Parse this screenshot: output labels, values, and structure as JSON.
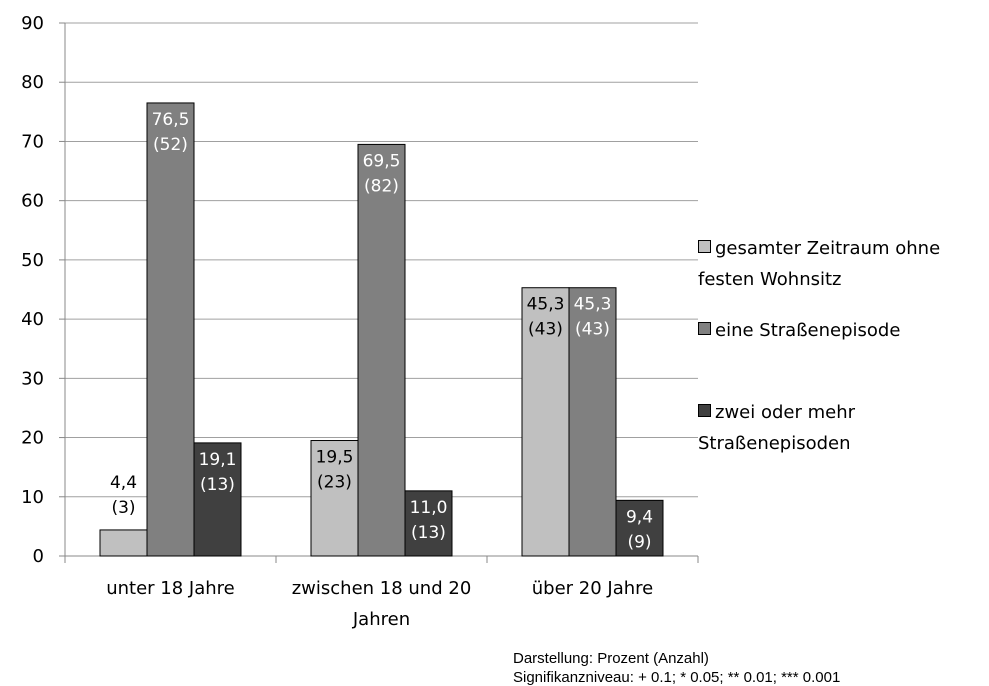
{
  "chart_data": {
    "type": "bar",
    "categories": [
      "unter 18 Jahre",
      "zwischen 18 und 20 Jahren",
      "über 20 Jahre"
    ],
    "series": [
      {
        "name": "gesamter Zeitraum ohne festen Wohnsitz",
        "color": "#c0c0c0",
        "values": [
          4.4,
          19.5,
          45.3
        ],
        "value_labels": [
          [
            "4,4",
            "(3)"
          ],
          [
            "19,5",
            "(23)"
          ],
          [
            "45,3",
            "(43)"
          ]
        ]
      },
      {
        "name": "eine Straßenepisode",
        "color": "#808080",
        "values": [
          76.5,
          69.5,
          45.3
        ],
        "value_labels": [
          [
            "76,5",
            "(52)"
          ],
          [
            "69,5",
            "(82)"
          ],
          [
            "45,3",
            "(43)"
          ]
        ]
      },
      {
        "name": "zwei oder mehr Straßenepisoden",
        "color": "#404040",
        "values": [
          19.1,
          11.0,
          9.4
        ],
        "value_labels": [
          [
            "19,1",
            "(13)"
          ],
          [
            "11,0",
            "(13)"
          ],
          [
            "9,4",
            "(9)"
          ]
        ]
      }
    ],
    "ylim": [
      0,
      90
    ],
    "yticks": [
      0,
      10,
      20,
      30,
      40,
      50,
      60,
      70,
      80,
      90
    ],
    "grid": true,
    "legend": "right",
    "notes": [
      "Darstellung: Prozent (Anzahl)",
      "Signifikanzniveau: + 0.1; * 0.05; ** 0.01; *** 0.001"
    ]
  }
}
